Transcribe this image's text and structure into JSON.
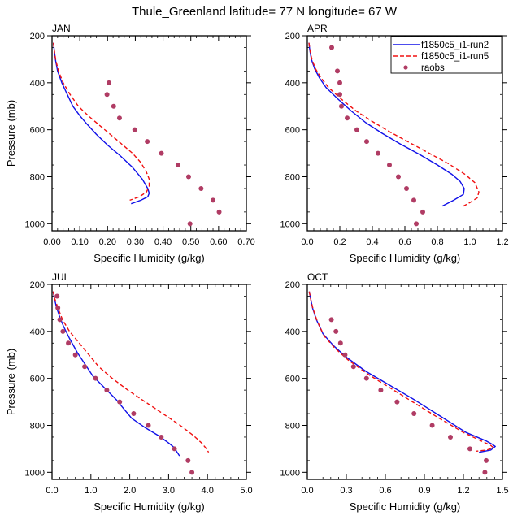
{
  "figure_title": "Thule_Greenland  latitude= 77 N longitude= 67 W",
  "colors": {
    "run2": "#1010e8",
    "run5": "#f01010",
    "raobs": "#b03c64",
    "frame": "#000000"
  },
  "legend": {
    "placement": "top-right of APR panel",
    "entries": [
      {
        "label": "f1850c5_i1-run2",
        "style": "solid line",
        "color": "#1010e8"
      },
      {
        "label": "f1850c5_i1-run5",
        "style": "dashed line",
        "color": "#f01010"
      },
      {
        "label": "raobs",
        "style": "dot",
        "color": "#b03c64"
      }
    ]
  },
  "chart_data": [
    {
      "type": "line",
      "panel": "JAN",
      "title": "JAN",
      "xlabel": "Specific Humidity (g/kg)",
      "ylabel": "Pressure (mb)",
      "xlim": [
        0,
        0.7
      ],
      "ylim": [
        200,
        1030
      ],
      "y_inverted": true,
      "xticks": [
        "0.00",
        "0.10",
        "0.20",
        "0.30",
        "0.40",
        "0.50",
        "0.60",
        "0.70"
      ],
      "xtick_values": [
        0,
        0.1,
        0.2,
        0.3,
        0.4,
        0.5,
        0.6,
        0.7
      ],
      "yticks": [
        "200",
        "400",
        "600",
        "800",
        "1000"
      ],
      "ytick_values": [
        200,
        400,
        600,
        800,
        1000
      ],
      "series": [
        {
          "name": "f1850c5_i1-run2",
          "kind": "line",
          "x": [
            0.005,
            0.008,
            0.012,
            0.02,
            0.035,
            0.055,
            0.075,
            0.1,
            0.125,
            0.16,
            0.2,
            0.245,
            0.29,
            0.325,
            0.345,
            0.35,
            0.345,
            0.32,
            0.285
          ],
          "y": [
            230,
            260,
            300,
            350,
            400,
            450,
            500,
            540,
            575,
            620,
            665,
            710,
            760,
            810,
            850,
            870,
            885,
            900,
            915
          ]
        },
        {
          "name": "f1850c5_i1-run5",
          "kind": "dashed",
          "x": [
            0.005,
            0.008,
            0.013,
            0.023,
            0.04,
            0.065,
            0.095,
            0.13,
            0.17,
            0.21,
            0.25,
            0.29,
            0.32,
            0.34,
            0.35,
            0.35,
            0.34,
            0.315,
            0.28
          ],
          "y": [
            230,
            260,
            300,
            350,
            400,
            450,
            500,
            540,
            580,
            620,
            660,
            700,
            740,
            780,
            810,
            840,
            865,
            885,
            900
          ]
        },
        {
          "name": "raobs",
          "kind": "points",
          "x": [
            0.205,
            0.198,
            0.222,
            0.243,
            0.298,
            0.343,
            0.394,
            0.454,
            0.492,
            0.537,
            0.58,
            0.602,
            0.497
          ],
          "y": [
            400,
            450,
            500,
            550,
            600,
            650,
            700,
            750,
            800,
            850,
            900,
            950,
            1000
          ]
        }
      ]
    },
    {
      "type": "line",
      "panel": "APR",
      "title": "APR",
      "xlabel": "Specific Humidity (g/kg)",
      "ylabel": "",
      "xlim": [
        0,
        1.2
      ],
      "ylim": [
        200,
        1030
      ],
      "y_inverted": true,
      "xticks": [
        "0.0",
        "0.2",
        "0.4",
        "0.6",
        "0.8",
        "1.0",
        "1.2"
      ],
      "xtick_values": [
        0,
        0.2,
        0.4,
        0.6,
        0.8,
        1.0,
        1.2
      ],
      "yticks": [
        "200",
        "400",
        "600",
        "800",
        "1000"
      ],
      "ytick_values": [
        200,
        400,
        600,
        800,
        1000
      ],
      "series": [
        {
          "name": "f1850c5_i1-run2",
          "kind": "line",
          "x": [
            0.01,
            0.015,
            0.025,
            0.045,
            0.075,
            0.115,
            0.19,
            0.27,
            0.36,
            0.46,
            0.57,
            0.69,
            0.8,
            0.89,
            0.94,
            0.965,
            0.96,
            0.9,
            0.83
          ],
          "y": [
            230,
            260,
            300,
            340,
            380,
            420,
            470,
            520,
            570,
            615,
            660,
            705,
            750,
            790,
            820,
            850,
            875,
            900,
            925
          ]
        },
        {
          "name": "f1850c5_i1-run5",
          "kind": "dashed",
          "x": [
            0.01,
            0.016,
            0.028,
            0.05,
            0.085,
            0.13,
            0.21,
            0.3,
            0.4,
            0.51,
            0.63,
            0.75,
            0.87,
            0.97,
            1.03,
            1.055,
            1.045,
            1.0,
            0.96
          ],
          "y": [
            230,
            260,
            300,
            340,
            380,
            420,
            470,
            520,
            565,
            610,
            655,
            700,
            745,
            790,
            825,
            865,
            890,
            910,
            925
          ]
        },
        {
          "name": "raobs",
          "kind": "points",
          "x": [
            0.15,
            0.185,
            0.2,
            0.2,
            0.21,
            0.245,
            0.305,
            0.365,
            0.435,
            0.505,
            0.56,
            0.61,
            0.655,
            0.71,
            0.67
          ],
          "y": [
            250,
            350,
            400,
            450,
            500,
            550,
            600,
            650,
            700,
            750,
            800,
            850,
            900,
            950,
            1000
          ]
        }
      ]
    },
    {
      "type": "line",
      "panel": "JUL",
      "title": "JUL",
      "xlabel": "Specific Humidity (g/kg)",
      "ylabel": "Pressure (mb)",
      "xlim": [
        0,
        5.0
      ],
      "ylim": [
        200,
        1030
      ],
      "y_inverted": true,
      "xticks": [
        "0.0",
        "1.0",
        "2.0",
        "3.0",
        "4.0",
        "5.0"
      ],
      "xtick_values": [
        0,
        1,
        2,
        3,
        4,
        5
      ],
      "yticks": [
        "200",
        "400",
        "600",
        "800",
        "1000"
      ],
      "ytick_values": [
        200,
        400,
        600,
        800,
        1000
      ],
      "series": [
        {
          "name": "f1850c5_i1-run2",
          "kind": "line",
          "x": [
            0.03,
            0.06,
            0.12,
            0.2,
            0.3,
            0.45,
            0.65,
            0.85,
            1.05,
            1.35,
            1.65,
            1.85,
            2.05,
            2.4,
            2.75,
            3.0,
            3.15,
            3.2,
            3.28
          ],
          "y": [
            230,
            260,
            300,
            340,
            380,
            430,
            490,
            540,
            590,
            640,
            690,
            730,
            770,
            810,
            845,
            875,
            895,
            910,
            930
          ]
        },
        {
          "name": "f1850c5_i1-run5",
          "kind": "dashed",
          "x": [
            0.03,
            0.07,
            0.15,
            0.27,
            0.45,
            0.7,
            0.95,
            1.2,
            1.55,
            1.95,
            2.4,
            2.85,
            3.3,
            3.65,
            3.85,
            3.95,
            4.03
          ],
          "y": [
            230,
            260,
            300,
            350,
            400,
            450,
            500,
            550,
            600,
            650,
            700,
            750,
            800,
            845,
            875,
            895,
            915
          ]
        },
        {
          "name": "raobs",
          "kind": "points",
          "x": [
            0.13,
            0.15,
            0.2,
            0.28,
            0.42,
            0.6,
            0.84,
            1.12,
            1.41,
            1.74,
            2.1,
            2.48,
            2.81,
            3.15,
            3.5,
            3.6
          ],
          "y": [
            250,
            300,
            350,
            400,
            450,
            500,
            550,
            600,
            650,
            700,
            750,
            800,
            850,
            900,
            950,
            1000
          ]
        }
      ]
    },
    {
      "type": "line",
      "panel": "OCT",
      "title": "OCT",
      "xlabel": "Specific Humidity (g/kg)",
      "ylabel": "",
      "xlim": [
        0,
        1.5
      ],
      "ylim": [
        200,
        1030
      ],
      "y_inverted": true,
      "xticks": [
        "0.0",
        "0.3",
        "0.6",
        "0.9",
        "1.2",
        "1.5"
      ],
      "xtick_values": [
        0,
        0.3,
        0.6,
        0.9,
        1.2,
        1.5
      ],
      "yticks": [
        "200",
        "400",
        "600",
        "800",
        "1000"
      ],
      "ytick_values": [
        200,
        400,
        600,
        800,
        1000
      ],
      "series": [
        {
          "name": "f1850c5_i1-run2",
          "kind": "line",
          "x": [
            0.015,
            0.025,
            0.04,
            0.07,
            0.12,
            0.2,
            0.3,
            0.45,
            0.62,
            0.82,
            1.02,
            1.22,
            1.37,
            1.42,
            1.445,
            1.41,
            1.32
          ],
          "y": [
            230,
            260,
            300,
            350,
            410,
            460,
            510,
            570,
            625,
            690,
            760,
            830,
            865,
            880,
            890,
            905,
            915
          ]
        },
        {
          "name": "f1850c5_i1-run5",
          "kind": "dashed",
          "x": [
            0.015,
            0.025,
            0.042,
            0.075,
            0.13,
            0.21,
            0.31,
            0.46,
            0.62,
            0.81,
            1.0,
            1.2,
            1.35,
            1.41,
            1.43,
            1.38,
            1.3
          ],
          "y": [
            230,
            260,
            300,
            355,
            420,
            470,
            520,
            580,
            635,
            700,
            765,
            830,
            870,
            885,
            895,
            905,
            910
          ]
        },
        {
          "name": "raobs",
          "kind": "points",
          "x": [
            0.185,
            0.22,
            0.255,
            0.29,
            0.355,
            0.455,
            0.565,
            0.69,
            0.82,
            0.96,
            1.1,
            1.25,
            1.375,
            1.365
          ],
          "y": [
            350,
            400,
            450,
            500,
            550,
            600,
            650,
            700,
            750,
            800,
            850,
            900,
            950,
            1000
          ]
        }
      ]
    }
  ]
}
